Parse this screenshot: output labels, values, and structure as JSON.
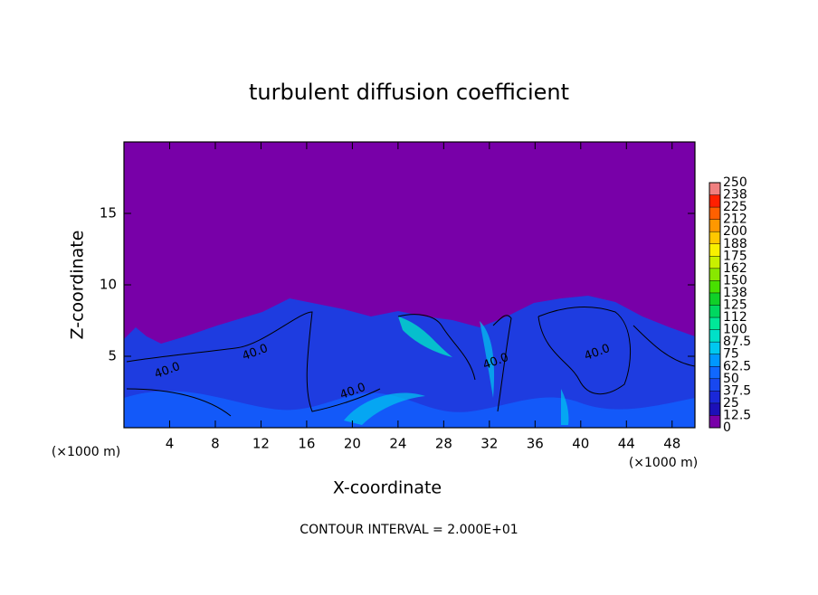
{
  "chart_data": {
    "type": "contour",
    "title": "turbulent diffusion coefficient",
    "x_label": "X-coordinate",
    "y_label": "Z-coordinate",
    "x_unit": "(×1000 m)",
    "y_unit": "(×1000 m)",
    "xlim": [
      0,
      50
    ],
    "xticks": [
      4,
      8,
      12,
      16,
      20,
      24,
      28,
      32,
      36,
      40,
      44,
      48
    ],
    "ylim": [
      0,
      20
    ],
    "yticks": [
      5,
      10,
      15
    ],
    "colorbar": {
      "lim": [
        0,
        250
      ],
      "ticks": [
        0,
        12.5,
        25,
        37.5,
        50,
        62.5,
        75,
        87.5,
        100,
        {
          "value": 112.5,
          "label": "112"
        },
        125,
        {
          "value": 137.5,
          "label": "138"
        },
        150,
        {
          "value": 162.5,
          "label": "162"
        },
        175,
        {
          "value": 187.5,
          "label": "188"
        },
        200,
        {
          "value": 212.5,
          "label": "212"
        },
        225,
        {
          "value": 237.5,
          "label": "238"
        },
        250
      ],
      "colors": [
        "#7800a8",
        "#1c10b8",
        "#1a28d8",
        "#1848f0",
        "#1068ff",
        "#0098ff",
        "#00c8f0",
        "#00e0c8",
        "#00e898",
        "#00d860",
        "#10d028",
        "#48e000",
        "#88e800",
        "#c8f000",
        "#f8f000",
        "#ffc800",
        "#ff9800",
        "#ff6000",
        "#ff2000",
        "#f08080"
      ]
    },
    "contour_labels": [
      "40.0",
      "40.0",
      "40.0",
      "40.0",
      "40.0"
    ],
    "footnote": "CONTOUR INTERVAL = 2.000E+01"
  }
}
